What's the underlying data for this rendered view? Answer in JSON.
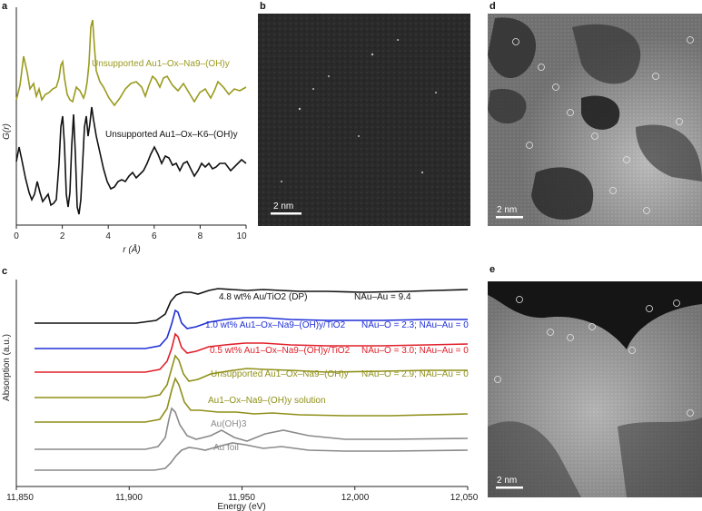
{
  "panels": {
    "a": "a",
    "b": "b",
    "c": "c",
    "d": "d",
    "e": "e"
  },
  "panel_a": {
    "ylabel": "G(r)",
    "xlabel": "r (Å)",
    "xticks": [
      "0",
      "2",
      "4",
      "6",
      "8",
      "10"
    ],
    "curve_labels": {
      "na": "Unsupported Au1–Ox–Na9–(OH)y",
      "k": "Unsupported Au1–Ox–K6–(OH)y"
    },
    "colors": {
      "na": "#9a9a1e",
      "k": "#111111"
    }
  },
  "images": {
    "b": {
      "scale_label": "2 nm"
    },
    "d": {
      "scale_label": "2 nm"
    },
    "e": {
      "scale_label": "2 nm"
    }
  },
  "panel_c": {
    "ylabel": "Absorption (a.u.)",
    "xlabel": "Energy (eV)",
    "xticks": [
      "11,850",
      "11,900",
      "11,950",
      "12,000",
      "12,050"
    ],
    "series_labels": [
      {
        "name": "4.8 wt% Au/TiO2 (DP)",
        "note": "NAu–Au = 9.4",
        "color": "#111111"
      },
      {
        "name": "1.0 wt% Au1–Ox–Na9–(OH)y/TiO2",
        "note": "NAu–O = 2.3; NAu–Au = 0",
        "color": "#1f2fd6"
      },
      {
        "name": "0.5 wt% Au1–Ox–Na9–(OH)y/TiO2",
        "note": "NAu–O = 3.0; NAu–Au = 0",
        "color": "#e0202a"
      },
      {
        "name": "Unsupported Au1–Ox–Na9–(OH)y",
        "note": "NAu–O = 2.9; NAu–Au = 0",
        "color": "#8f8f1a"
      },
      {
        "name": "Au1–Ox–Na9–(OH)y solution",
        "note": "",
        "color": "#8f8f1a"
      },
      {
        "name": "Au(OH)3",
        "note": "",
        "color": "#8a8a8a"
      },
      {
        "name": "Au foil",
        "note": "",
        "color": "#8a8a8a"
      }
    ]
  }
}
